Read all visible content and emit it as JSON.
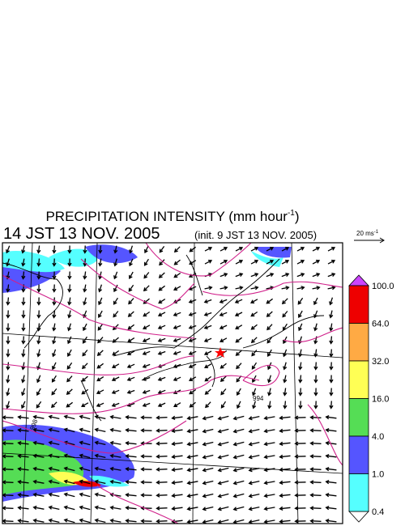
{
  "header": {
    "title": "PRECIPITATION INTENSITY (mm hour",
    "title_sup": "-1",
    "title_end": ")",
    "valid_time": "14 JST 13 NOV. 2005",
    "init_time": "(init. 9 JST 13 NOV. 2005)"
  },
  "vector_scale": {
    "label": "20 ms",
    "sup": "-1"
  },
  "colorbar": {
    "labels": [
      "100.0",
      "64.0",
      "32.0",
      "16.0",
      "4.0",
      "1.0",
      "0.4"
    ]
  },
  "map": {
    "contour_labels": [
      "998",
      "994"
    ]
  }
}
